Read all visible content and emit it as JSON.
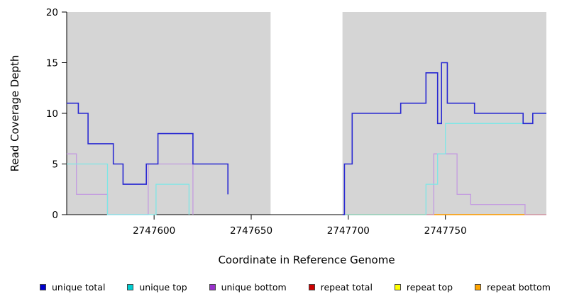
{
  "chart_data": {
    "type": "line",
    "title": "",
    "xlabel": "Coordinate in Reference Genome",
    "ylabel": "Read Coverage Depth",
    "xlim": [
      2747555,
      2747802
    ],
    "ylim": [
      0,
      20
    ],
    "xticks": [
      2747600,
      2747650,
      2747700,
      2747750
    ],
    "yticks": [
      0,
      5,
      10,
      15,
      20
    ],
    "grid": false,
    "plot_background": "#ffffff",
    "shaded_regions": [
      {
        "x0": 2747555,
        "x1": 2747660,
        "color": "#d5d5d5"
      },
      {
        "x0": 2747697,
        "x1": 2747802,
        "color": "#d5d5d5"
      }
    ],
    "gap_region": {
      "x0": 2747660,
      "x1": 2747697
    },
    "series": [
      {
        "name": "repeat total",
        "stroke": "#cd0000",
        "width": 1.2,
        "points": [
          [
            2747555,
            0
          ],
          [
            2747660,
            null
          ],
          [
            2747697,
            0
          ],
          [
            2747802,
            0
          ]
        ]
      },
      {
        "name": "repeat top",
        "stroke": "#ffff00",
        "width": 1.2,
        "points": [
          [
            2747555,
            0
          ],
          [
            2747660,
            null
          ],
          [
            2747697,
            0
          ],
          [
            2747802,
            0
          ]
        ]
      },
      {
        "name": "repeat bottom",
        "stroke": "#ff9d00",
        "width": 1.2,
        "points": [
          [
            2747555,
            0
          ],
          [
            2747660,
            null
          ],
          [
            2747697,
            0
          ],
          [
            2747802,
            0
          ]
        ]
      },
      {
        "name": "unique bottom",
        "stroke": "#c49be0",
        "width": 1.3,
        "points": [
          [
            2747555,
            6
          ],
          [
            2747560,
            2
          ],
          [
            2747576,
            0
          ],
          [
            2747597,
            5
          ],
          [
            2747620,
            0
          ],
          [
            2747660,
            null
          ],
          [
            2747697,
            0
          ],
          [
            2747744,
            6
          ],
          [
            2747756,
            2
          ],
          [
            2747763,
            1
          ],
          [
            2747791,
            0
          ],
          [
            2747802,
            0
          ]
        ]
      },
      {
        "name": "unique top",
        "stroke": "#7fe6e6",
        "width": 1.3,
        "points": [
          [
            2747555,
            5
          ],
          [
            2747576,
            0
          ],
          [
            2747601,
            3
          ],
          [
            2747618,
            0
          ],
          [
            2747660,
            null
          ],
          [
            2747697,
            0
          ],
          [
            2747740,
            3
          ],
          [
            2747746,
            6
          ],
          [
            2747750,
            9
          ],
          [
            2747795,
            10
          ],
          [
            2747802,
            10
          ]
        ]
      },
      {
        "name": "unique total",
        "stroke": "#2a2ad2",
        "width": 1.6,
        "points": [
          [
            2747555,
            11
          ],
          [
            2747561,
            10
          ],
          [
            2747566,
            7
          ],
          [
            2747579,
            5
          ],
          [
            2747584,
            3
          ],
          [
            2747596,
            5
          ],
          [
            2747602,
            8
          ],
          [
            2747620,
            5
          ],
          [
            2747638,
            2
          ],
          [
            2747660,
            null
          ],
          [
            2747697,
            0
          ],
          [
            2747698,
            5
          ],
          [
            2747702,
            10
          ],
          [
            2747727,
            11
          ],
          [
            2747740,
            14
          ],
          [
            2747746,
            9
          ],
          [
            2747748,
            15
          ],
          [
            2747751,
            11
          ],
          [
            2747765,
            10
          ],
          [
            2747790,
            9
          ],
          [
            2747795,
            10
          ],
          [
            2747802,
            10
          ]
        ]
      }
    ],
    "legend": [
      {
        "label": "unique total",
        "color": "#0000cd"
      },
      {
        "label": "unique top",
        "color": "#00ced1"
      },
      {
        "label": "unique bottom",
        "color": "#9932cc"
      },
      {
        "label": "repeat total",
        "color": "#cd0000"
      },
      {
        "label": "repeat top",
        "color": "#ffff00"
      },
      {
        "label": "repeat bottom",
        "color": "#ffa500"
      }
    ],
    "legend_position": "bottom"
  }
}
